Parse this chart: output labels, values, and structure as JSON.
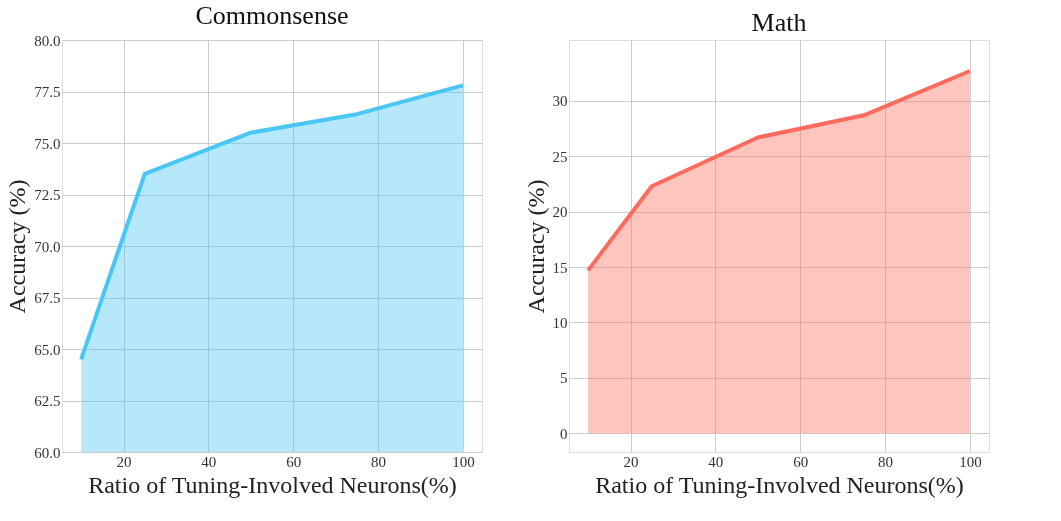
{
  "chart_data": [
    {
      "type": "area",
      "title": "Commonsense",
      "xlabel": "Ratio of Tuning-Involved Neurons(%)",
      "ylabel": "Accuracy (%)",
      "x": [
        10,
        25,
        50,
        75,
        100
      ],
      "series": [
        {
          "color": "#48c6f5",
          "values": [
            64.5,
            73.5,
            75.5,
            76.4,
            77.8
          ]
        }
      ],
      "xlim": [
        5.5,
        104.5
      ],
      "xticks": [
        20,
        40,
        60,
        80,
        100
      ],
      "ylim": [
        60,
        80
      ],
      "yticks": [
        {
          "value": 60,
          "label": "60.0"
        },
        {
          "value": 62.5,
          "label": "62.5"
        },
        {
          "value": 65,
          "label": "65.0"
        },
        {
          "value": 67.5,
          "label": "67.5"
        },
        {
          "value": 70,
          "label": "70.0"
        },
        {
          "value": 72.5,
          "label": "72.5"
        },
        {
          "value": 75,
          "label": "75.0"
        },
        {
          "value": 77.5,
          "label": "77.5"
        },
        {
          "value": 80,
          "label": "80.0"
        }
      ],
      "grid": true
    },
    {
      "type": "area",
      "title": "Math",
      "xlabel": "Ratio of Tuning-Involved Neurons(%)",
      "ylabel": "Accuracy (%)",
      "x": [
        10,
        25,
        50,
        75,
        100
      ],
      "series": [
        {
          "color": "#fd6b5c",
          "values": [
            14.7,
            22.3,
            26.7,
            28.7,
            32.7
          ]
        }
      ],
      "xlim": [
        5.5,
        104.5
      ],
      "xticks": [
        20,
        40,
        60,
        80,
        100
      ],
      "ylim": [
        -1.7,
        35.5
      ],
      "yticks": [
        0,
        5,
        10,
        15,
        20,
        25,
        30
      ],
      "grid": true
    }
  ]
}
